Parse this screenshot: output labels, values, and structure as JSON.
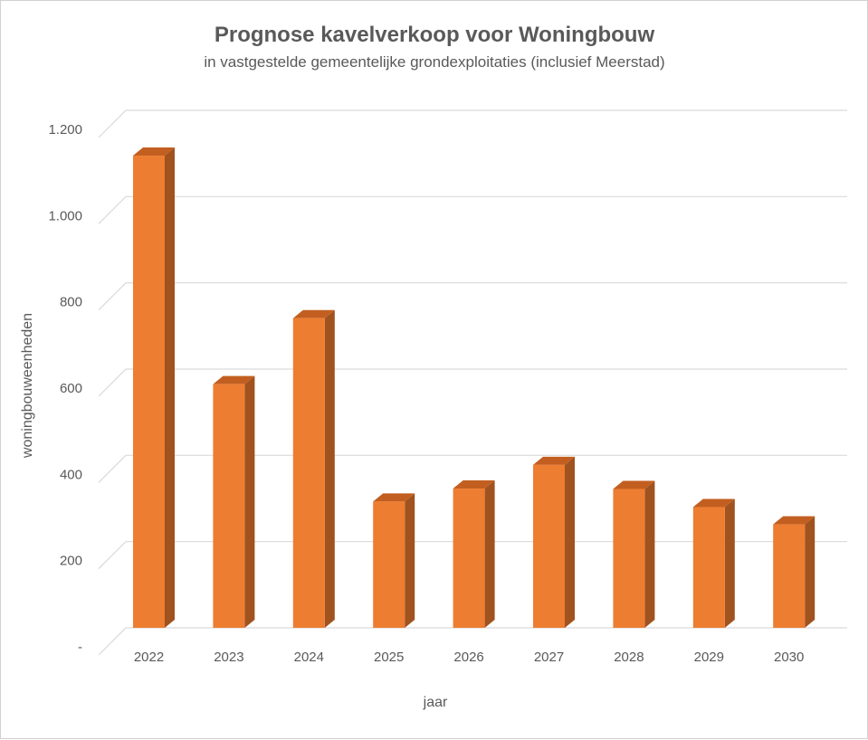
{
  "chart_data": {
    "type": "bar",
    "title": "Prognose kavelverkoop voor Woningbouw",
    "subtitle": "in vastgestelde gemeentelijke grondexploitaties (inclusief Meerstad)",
    "xlabel": "jaar",
    "ylabel": "woningbouweenheden",
    "categories": [
      "2022",
      "2023",
      "2024",
      "2025",
      "2026",
      "2027",
      "2028",
      "2029",
      "2030"
    ],
    "values": [
      1095,
      565,
      718,
      293,
      323,
      378,
      322,
      280,
      240
    ],
    "ylim": [
      0,
      1200
    ],
    "y_ticks": [
      {
        "value": 0,
        "label": "-"
      },
      {
        "value": 200,
        "label": "200"
      },
      {
        "value": 400,
        "label": "400"
      },
      {
        "value": 600,
        "label": "600"
      },
      {
        "value": 800,
        "label": "800"
      },
      {
        "value": 1000,
        "label": "1.000"
      },
      {
        "value": 1200,
        "label": "1.200"
      }
    ],
    "grid": true,
    "legend": "none",
    "colors": {
      "bar_front": "#ED7D31",
      "bar_side": "#A0521F",
      "bar_top": "#C25F20",
      "grid": "#d9d9d9",
      "text": "#595959"
    }
  }
}
